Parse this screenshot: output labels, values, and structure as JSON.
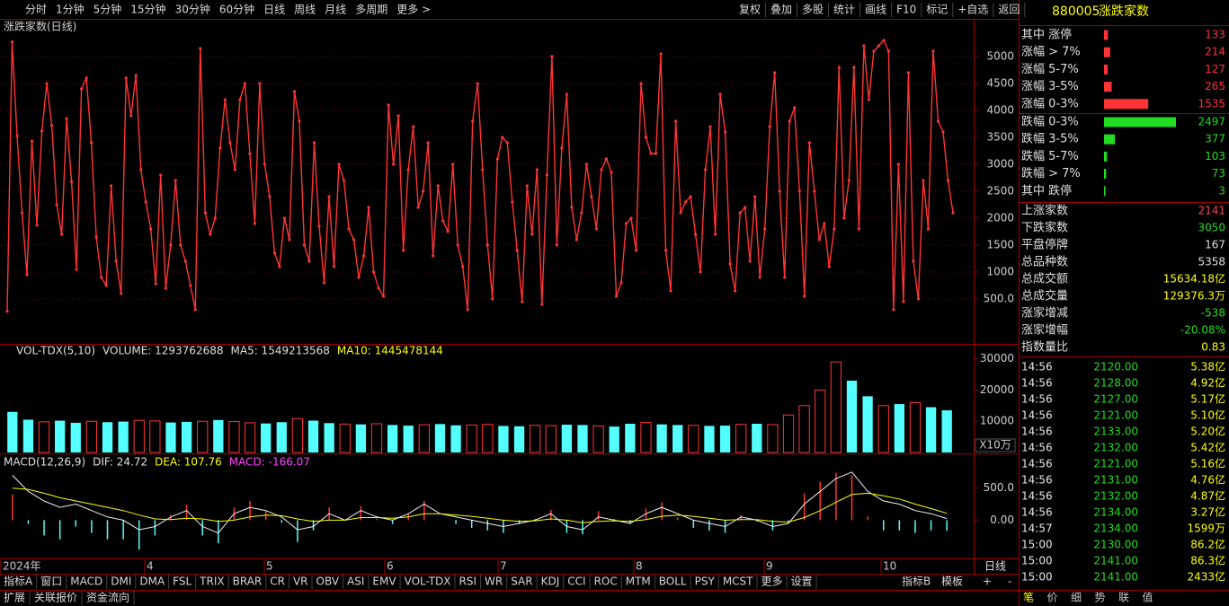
{
  "toolbar": {
    "left": [
      "分时",
      "1分钟",
      "5分钟",
      "15分钟",
      "30分钟",
      "60分钟",
      "日线",
      "周线",
      "月线",
      "多周期",
      "更多 >"
    ],
    "right": [
      "复权",
      "叠加",
      "多股",
      "统计",
      "画线",
      "F10",
      "标记",
      "+自选",
      "返回"
    ]
  },
  "main_chart": {
    "type": "line",
    "title": "涨跌家数(日线)",
    "color": "#ff3535",
    "grid": true,
    "ylim": [
      -333,
      5683
    ],
    "yticks": [
      {
        "value": 500,
        "label": "500.0"
      },
      1000,
      1500,
      2000,
      2500,
      3000,
      3500,
      4000,
      4500,
      5000
    ],
    "values": [
      270,
      5270,
      3530,
      2100,
      950,
      3430,
      1870,
      3620,
      4500,
      3720,
      2250,
      1700,
      3850,
      2680,
      1050,
      4400,
      4600,
      3400,
      1650,
      900,
      750,
      2600,
      1200,
      600,
      4600,
      3900,
      4650,
      2900,
      2300,
      1800,
      780,
      2800,
      700,
      1500,
      2700,
      1500,
      1200,
      750,
      300,
      5150,
      2100,
      1700,
      2000,
      3300,
      4200,
      3400,
      2900,
      4200,
      4500,
      3200,
      1900,
      4500,
      3000,
      2400,
      1350,
      1100,
      2000,
      1600,
      4350,
      3800,
      1500,
      1200,
      3400,
      1850,
      800,
      2400,
      1100,
      3000,
      2700,
      1800,
      1600,
      900,
      1300,
      2200,
      1000,
      700,
      550,
      4100,
      3000,
      3900,
      1400,
      2900,
      3700,
      2200,
      2500,
      3400,
      1300,
      2600,
      1950,
      1750,
      3000,
      1500,
      1100,
      300,
      3800,
      4500,
      2900,
      1500,
      500,
      3100,
      3500,
      3400,
      2300,
      1400,
      450,
      2600,
      1700,
      2900,
      400,
      2800,
      5000,
      1500,
      3300,
      4300,
      2200,
      1600,
      2100,
      3000,
      2400,
      1800,
      2900,
      3100,
      2850,
      550,
      800,
      1900,
      2000,
      1400,
      4500,
      3500,
      3200,
      3200,
      5050,
      1400,
      650,
      3800,
      2100,
      2300,
      2400,
      1700,
      1000,
      2900,
      3700,
      1700,
      4300,
      3600,
      1150,
      650,
      2100,
      2200,
      1200,
      2400,
      900,
      1800,
      3700,
      4700,
      2500,
      900,
      3800,
      4050,
      2500,
      550,
      3400,
      2500,
      1600,
      1900,
      1100,
      1800,
      4800,
      2000,
      2700,
      4800,
      1800,
      5200,
      4200,
      5100,
      5200,
      5300,
      5100,
      300,
      3000,
      450,
      4700,
      1200,
      500,
      2700,
      1800,
      5100,
      3800,
      3600,
      2700,
      2100
    ]
  },
  "volume_chart": {
    "type": "bar",
    "header": [
      "VOL-TDX(5,10)",
      "VOLUME: 1293762688",
      "MA5: 1549213568",
      "MA10: 1445478144"
    ],
    "unit_label": "X10万",
    "up_color": "#ff3535",
    "down_color": "#54ffff",
    "ylim": [
      0,
      34500
    ],
    "yticks": [
      10000,
      20000,
      30000
    ],
    "values": [
      13000,
      10500,
      9800,
      10200,
      9500,
      10000,
      9700,
      9900,
      10300,
      10100,
      9600,
      9800,
      10000,
      10400,
      9900,
      9500,
      9300,
      9700,
      10800,
      10200,
      9400,
      9100,
      9000,
      9200,
      8800,
      8600,
      8900,
      9100,
      8700,
      8800,
      9000,
      8500,
      8400,
      8700,
      8600,
      8900,
      8800,
      8500,
      8300,
      9200,
      9600,
      9000,
      8800,
      8700,
      8500,
      8600,
      9000,
      9200,
      8900,
      12000,
      15000,
      20000,
      29000,
      23000,
      18000,
      15000,
      15500,
      16000,
      14500,
      13500
    ],
    "rising": [
      false,
      false,
      true,
      false,
      false,
      true,
      false,
      false,
      true,
      true,
      false,
      false,
      true,
      false,
      true,
      true,
      false,
      false,
      true,
      false,
      false,
      true,
      false,
      true,
      false,
      false,
      true,
      false,
      false,
      true,
      true,
      false,
      false,
      true,
      true,
      false,
      false,
      true,
      false,
      false,
      true,
      false,
      false,
      true,
      false,
      false,
      true,
      false,
      true,
      true,
      true,
      true,
      true,
      false,
      false,
      true,
      false,
      true,
      false,
      false
    ]
  },
  "macd_chart": {
    "type": "macd",
    "header": [
      "MACD(12,26,9)",
      "DIF: 24.72",
      "DEA: 107.76",
      "MACD: -166.07"
    ],
    "ylim": [
      -597,
      1028
    ],
    "yticks": [
      {
        "value": 0,
        "label": "0.00"
      },
      {
        "value": 500,
        "label": "500.0"
      }
    ],
    "dif": [
      700,
      450,
      300,
      200,
      250,
      150,
      50,
      0,
      -150,
      -100,
      50,
      150,
      -100,
      -200,
      100,
      200,
      150,
      50,
      -150,
      -100,
      100,
      0,
      150,
      50,
      0,
      100,
      250,
      100,
      50,
      0,
      -50,
      -100,
      -50,
      0,
      100,
      -100,
      -150,
      50,
      0,
      -50,
      100,
      200,
      100,
      0,
      -50,
      -100,
      50,
      0,
      -100,
      -50,
      250,
      450,
      650,
      750,
      450,
      300,
      250,
      150,
      100,
      24.72
    ],
    "dea": [
      500,
      480,
      420,
      350,
      300,
      250,
      200,
      150,
      80,
      20,
      10,
      30,
      20,
      -20,
      0,
      50,
      80,
      70,
      20,
      -20,
      0,
      0,
      40,
      40,
      30,
      50,
      100,
      100,
      80,
      60,
      30,
      0,
      -20,
      -10,
      20,
      0,
      -40,
      -20,
      -10,
      -20,
      10,
      60,
      80,
      60,
      30,
      0,
      10,
      10,
      -20,
      -30,
      40,
      150,
      280,
      400,
      420,
      380,
      330,
      250,
      180,
      107.76
    ],
    "macd": [
      400,
      -60,
      -240,
      -300,
      -100,
      -200,
      -300,
      -300,
      -460,
      -240,
      80,
      240,
      -240,
      -360,
      200,
      300,
      140,
      -40,
      -340,
      -160,
      200,
      0,
      220,
      20,
      -60,
      100,
      300,
      0,
      -60,
      -120,
      -160,
      -200,
      -60,
      20,
      160,
      -200,
      -220,
      140,
      20,
      -60,
      180,
      280,
      40,
      -120,
      -160,
      -200,
      80,
      -20,
      -160,
      -40,
      420,
      600,
      740,
      700,
      60,
      -160,
      -160,
      -200,
      -160,
      -166.07
    ]
  },
  "x_axis": {
    "labels": [
      "2024年",
      "4",
      "5",
      "6",
      "7",
      "8",
      "9",
      "10"
    ],
    "period": "日线"
  },
  "indicator_tabs": {
    "left": [
      "指标A",
      "窗口",
      "MACD",
      "DMI",
      "DMA",
      "FSL",
      "TRIX",
      "BRAR",
      "CR",
      "VR",
      "OBV",
      "ASI",
      "EMV",
      "VOL-TDX",
      "RSI",
      "WR",
      "SAR",
      "KDJ",
      "CCI",
      "ROC",
      "MTM",
      "BOLL",
      "PSY",
      "MCST",
      "更多",
      "设置"
    ],
    "right": [
      "指标B",
      "模板",
      "+",
      "-"
    ]
  },
  "bottom_tabs": [
    "扩展",
    "关联报价",
    "资金流向"
  ],
  "side_panel": {
    "code": "880005",
    "name": "涨跌家数",
    "rise_color": "#ff3535",
    "fall_color": "#22dd22",
    "rises": [
      {
        "label": "其中 涨停",
        "value": 133
      },
      {
        "label": "涨幅 > 7%",
        "value": 214
      },
      {
        "label": "涨幅 5-7%",
        "value": 127
      },
      {
        "label": "涨幅 3-5%",
        "value": 265
      },
      {
        "label": "涨幅 0-3%",
        "value": 1535
      }
    ],
    "falls": [
      {
        "label": "跌幅 0-3%",
        "value": 2497
      },
      {
        "label": "跌幅 3-5%",
        "value": 377
      },
      {
        "label": "跌幅 5-7%",
        "value": 103
      },
      {
        "label": "跌幅 > 7%",
        "value": 73
      },
      {
        "label": "其中 跌停",
        "value": 3
      }
    ],
    "stats": [
      {
        "label": "上涨家数",
        "value": "2141"
      },
      {
        "label": "下跌家数",
        "value": "3050"
      },
      {
        "label": "平盘停牌",
        "value": "167"
      },
      {
        "label": "总品种数",
        "value": "5358"
      },
      {
        "label": "总成交额",
        "value": "15634.18亿"
      },
      {
        "label": "总成交量",
        "value": "129376.3万"
      },
      {
        "label": "涨家增减",
        "value": "-538"
      },
      {
        "label": "涨家增幅",
        "value": "-20.08%"
      },
      {
        "label": "指数量比",
        "value": "0.83"
      }
    ],
    "ticks": [
      {
        "time": "14:56",
        "price": "2120.00",
        "amount": "5.38亿"
      },
      {
        "time": "14:56",
        "price": "2128.00",
        "amount": "4.92亿"
      },
      {
        "time": "14:56",
        "price": "2127.00",
        "amount": "5.17亿"
      },
      {
        "time": "14:56",
        "price": "2121.00",
        "amount": "5.10亿"
      },
      {
        "time": "14:56",
        "price": "2133.00",
        "amount": "5.20亿"
      },
      {
        "time": "14:56",
        "price": "2132.00",
        "amount": "5.42亿"
      },
      {
        "time": "14:56",
        "price": "2121.00",
        "amount": "5.16亿"
      },
      {
        "time": "14:56",
        "price": "2131.00",
        "amount": "4.76亿"
      },
      {
        "time": "14:56",
        "price": "2132.00",
        "amount": "4.87亿"
      },
      {
        "time": "14:56",
        "price": "2134.00",
        "amount": "3.27亿"
      },
      {
        "time": "14:57",
        "price": "2134.00",
        "amount": "1599万"
      },
      {
        "time": "15:00",
        "price": "2130.00",
        "amount": "86.2亿"
      },
      {
        "time": "15:00",
        "price": "2141.00",
        "amount": "86.3亿"
      },
      {
        "time": "15:00",
        "price": "2141.00",
        "amount": "2433亿"
      }
    ],
    "tabs": [
      "笔",
      "价",
      "细",
      "势",
      "联",
      "值"
    ]
  }
}
